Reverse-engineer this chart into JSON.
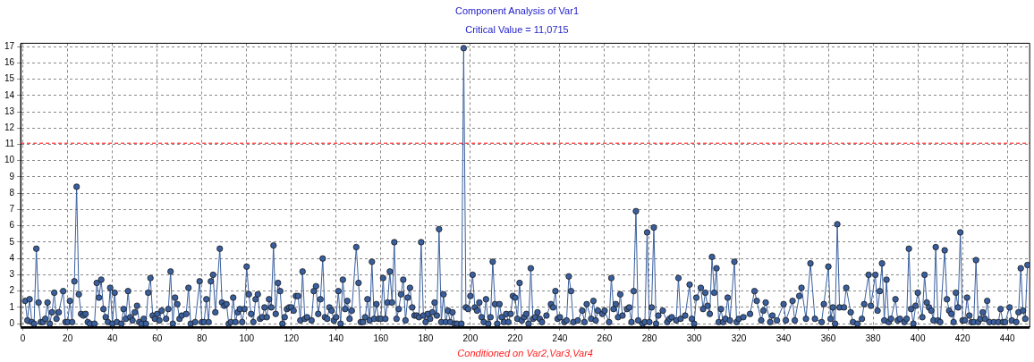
{
  "chart_data": {
    "type": "line",
    "title": "Component Analysis of Var1",
    "subtitle": "Critical Value = 11,0715",
    "xlabel": "Conditioned on Var2,Var3,Var4",
    "xlim": [
      -1,
      450
    ],
    "ylim": [
      -0.2,
      17.2
    ],
    "xticks": [
      0,
      20,
      40,
      60,
      80,
      100,
      120,
      140,
      160,
      180,
      200,
      220,
      240,
      260,
      280,
      300,
      320,
      340,
      360,
      380,
      400,
      420,
      440
    ],
    "yticks": [
      0,
      1,
      2,
      3,
      4,
      5,
      6,
      7,
      8,
      9,
      10,
      11,
      12,
      13,
      14,
      15,
      16,
      17
    ],
    "grid": true,
    "legend": false,
    "marker": "circle",
    "line_style": "solid",
    "ref_lines": [
      {
        "axis": "y",
        "value": 11.0715,
        "color": "#ff0000",
        "line_style": "dashed"
      }
    ],
    "series": [
      {
        "color": "#3a5f9e",
        "x": [
          1,
          2,
          3,
          4,
          5,
          6,
          7,
          8,
          9,
          10,
          11,
          12,
          13,
          14,
          15,
          16,
          18,
          19,
          20,
          21,
          22,
          23,
          24,
          25,
          26,
          27,
          28,
          29,
          30,
          32,
          33,
          34,
          35,
          36,
          37,
          38,
          39,
          40,
          41,
          42,
          44,
          45,
          46,
          47,
          48,
          49,
          50,
          51,
          52,
          53,
          54,
          55,
          56,
          57,
          58,
          59,
          60,
          61,
          62,
          64,
          65,
          66,
          67,
          68,
          69,
          70,
          71,
          73,
          74,
          75,
          77,
          79,
          80,
          81,
          82,
          83,
          84,
          85,
          86,
          88,
          89,
          90,
          91,
          92,
          93,
          94,
          95,
          96,
          97,
          98,
          99,
          100,
          101,
          102,
          103,
          104,
          105,
          106,
          107,
          108,
          109,
          110,
          111,
          112,
          113,
          114,
          115,
          116,
          117,
          118,
          119,
          120,
          121,
          122,
          123,
          124,
          125,
          126,
          127,
          129,
          130,
          131,
          132,
          133,
          134,
          135,
          136,
          137,
          138,
          139,
          140,
          141,
          142,
          143,
          144,
          145,
          146,
          147,
          149,
          150,
          151,
          152,
          153,
          154,
          155,
          156,
          157,
          158,
          159,
          160,
          161,
          162,
          163,
          164,
          165,
          166,
          167,
          168,
          169,
          170,
          171,
          172,
          173,
          174,
          175,
          176,
          177,
          178,
          179,
          180,
          181,
          182,
          183,
          184,
          185,
          186,
          187,
          188,
          189,
          190,
          191,
          192,
          193,
          194,
          196,
          197,
          198,
          199,
          200,
          201,
          202,
          203,
          204,
          205,
          206,
          207,
          208,
          209,
          210,
          211,
          212,
          213,
          214,
          215,
          216,
          217,
          218,
          219,
          220,
          221,
          222,
          223,
          224,
          225,
          226,
          227,
          228,
          229,
          230,
          231,
          232,
          234,
          236,
          237,
          238,
          239,
          240,
          242,
          243,
          244,
          245,
          246,
          248,
          250,
          251,
          252,
          254,
          255,
          256,
          257,
          259,
          260,
          262,
          263,
          264,
          265,
          266,
          267,
          268,
          270,
          271,
          272,
          273,
          274,
          275,
          277,
          278,
          279,
          280,
          281,
          282,
          283,
          284,
          286,
          288,
          289,
          290,
          292,
          293,
          294,
          296,
          298,
          299,
          300,
          301,
          303,
          304,
          305,
          306,
          307,
          308,
          309,
          310,
          311,
          312,
          313,
          314,
          315,
          316,
          318,
          319,
          320,
          322,
          325,
          327,
          328,
          330,
          331,
          332,
          334,
          335,
          337,
          340,
          341,
          344,
          345,
          347,
          348,
          350,
          352,
          354,
          357,
          358,
          360,
          361,
          362,
          363,
          364,
          365,
          367,
          368,
          370,
          371,
          373,
          375,
          376,
          378,
          379,
          381,
          382,
          383,
          384,
          385,
          386,
          387,
          388,
          390,
          391,
          392,
          394,
          395,
          396,
          397,
          398,
          399,
          400,
          402,
          403,
          404,
          405,
          406,
          407,
          408,
          409,
          410,
          412,
          413,
          414,
          415,
          416,
          417,
          418,
          419,
          420,
          421,
          422,
          423,
          424,
          425,
          426,
          427,
          428,
          429,
          430,
          431,
          432,
          434,
          436,
          437,
          438,
          439,
          441,
          442,
          444,
          445,
          446,
          447,
          448,
          449
        ],
        "values": [
          1.4,
          0.2,
          1.5,
          0.1,
          0.0,
          4.6,
          1.3,
          0.1,
          0.1,
          0.3,
          1.3,
          0.0,
          0.7,
          1.9,
          0.3,
          0.7,
          2.0,
          0.1,
          0.1,
          1.4,
          0.1,
          2.6,
          8.4,
          1.8,
          0.6,
          0.5,
          0.6,
          0.1,
          0.0,
          0.0,
          2.5,
          1.6,
          2.7,
          0.9,
          0.4,
          0.1,
          2.2,
          0.0,
          1.9,
          0.1,
          0.0,
          0.9,
          0.3,
          2.0,
          0.4,
          0.2,
          0.7,
          1.1,
          0.1,
          0.0,
          0.3,
          0.0,
          1.9,
          2.8,
          0.5,
          0.3,
          0.6,
          0.2,
          0.8,
          0.3,
          0.9,
          3.2,
          0.0,
          1.6,
          1.2,
          0.3,
          0.5,
          0.6,
          2.2,
          0.0,
          0.1,
          2.6,
          0.1,
          0.1,
          1.5,
          0.1,
          2.6,
          3.0,
          0.7,
          4.6,
          1.3,
          1.1,
          1.2,
          0.0,
          0.1,
          1.6,
          0.1,
          0.7,
          0.9,
          0.1,
          0.9,
          3.5,
          1.8,
          0.6,
          0.1,
          1.5,
          1.8,
          0.3,
          0.4,
          1.0,
          0.4,
          1.5,
          1.0,
          4.8,
          0.6,
          2.5,
          2.0,
          0.0,
          0.4,
          0.9,
          1.0,
          1.0,
          0.8,
          1.7,
          1.7,
          0.2,
          3.2,
          0.3,
          0.4,
          0.2,
          2.0,
          2.3,
          0.6,
          1.5,
          4.0,
          0.4,
          0.3,
          1.0,
          0.8,
          0.2,
          0.4,
          2.0,
          0.0,
          2.7,
          0.9,
          1.4,
          0.3,
          0.8,
          4.7,
          2.5,
          0.1,
          0.1,
          0.4,
          1.5,
          0.2,
          3.8,
          0.3,
          1.2,
          0.3,
          0.3,
          2.8,
          0.3,
          1.3,
          3.2,
          1.3,
          5.0,
          0.3,
          0.9,
          1.8,
          2.7,
          0.2,
          1.6,
          2.2,
          1.0,
          0.5,
          0.5,
          0.4,
          5.0,
          0.5,
          0.1,
          0.6,
          0.3,
          0.7,
          1.3,
          0.5,
          5.8,
          0.1,
          1.8,
          0.1,
          0.8,
          0.1,
          0.7,
          0.0,
          0.0,
          0.0,
          16.9,
          1.0,
          0.9,
          1.7,
          3.0,
          1.0,
          0.8,
          1.3,
          0.4,
          0.1,
          1.5,
          0.0,
          0.4,
          3.8,
          1.2,
          0.0,
          1.2,
          0.4,
          0.1,
          0.6,
          0.1,
          0.6,
          1.7,
          1.6,
          0.3,
          2.5,
          0.2,
          0.4,
          0.6,
          0.0,
          3.4,
          0.3,
          0.4,
          0.7,
          0.3,
          0.1,
          0.5,
          1.2,
          1.0,
          2.0,
          0.3,
          0.4,
          0.1,
          0.2,
          2.9,
          2.0,
          0.1,
          0.2,
          0.8,
          0.1,
          1.2,
          0.3,
          1.4,
          0.2,
          0.8,
          0.6,
          0.8,
          0.1,
          2.8,
          0.9,
          1.2,
          0.4,
          1.8,
          0.5,
          0.9,
          1.0,
          0.1,
          2.0,
          6.9,
          0.2,
          0.0,
          0.1,
          5.6,
          0.1,
          1.0,
          5.9,
          0.0,
          0.5,
          0.8,
          0.1,
          0.3,
          0.4,
          0.2,
          2.8,
          0.3,
          0.5,
          2.4,
          0.3,
          0.0,
          1.6,
          2.2,
          0.9,
          1.9,
          1.1,
          0.6,
          4.1,
          1.9,
          3.4,
          0.1,
          0.9,
          0.1,
          0.3,
          1.6,
          0.2,
          3.8,
          0.1,
          0.3,
          0.4,
          0.6,
          2.0,
          1.4,
          0.2,
          0.8,
          1.3,
          0.1,
          0.5,
          0.2,
          1.2,
          0.2,
          1.4,
          0.2,
          1.7,
          2.2,
          0.3,
          3.7,
          0.3,
          0.1,
          1.2,
          3.5,
          0.3,
          1.0,
          0.0,
          6.1,
          1.0,
          1.0,
          2.2,
          0.7,
          0.1,
          0.0,
          0.3,
          1.2,
          3.0,
          1.1,
          3.0,
          0.8,
          2.0,
          3.7,
          0.2,
          2.7,
          0.1,
          0.3,
          1.5,
          0.2,
          0.3,
          0.1,
          0.3,
          4.6,
          0.9,
          0.0,
          1.1,
          1.9,
          0.4,
          3.0,
          1.3,
          1.0,
          0.8,
          0.2,
          4.7,
          0.2,
          0.1,
          4.5,
          1.5,
          0.8,
          0.6,
          0.1,
          1.9,
          1.0,
          5.6,
          0.2,
          0.2,
          1.6,
          0.5,
          0.1,
          0.1,
          3.9,
          0.1,
          0.3,
          0.7,
          0.3,
          1.4,
          0.1,
          0.1,
          0.1,
          0.9,
          0.1,
          0.1,
          1.0,
          0.2,
          0.1,
          0.7,
          3.4,
          0.8,
          0.3,
          3.6
        ]
      }
    ]
  }
}
